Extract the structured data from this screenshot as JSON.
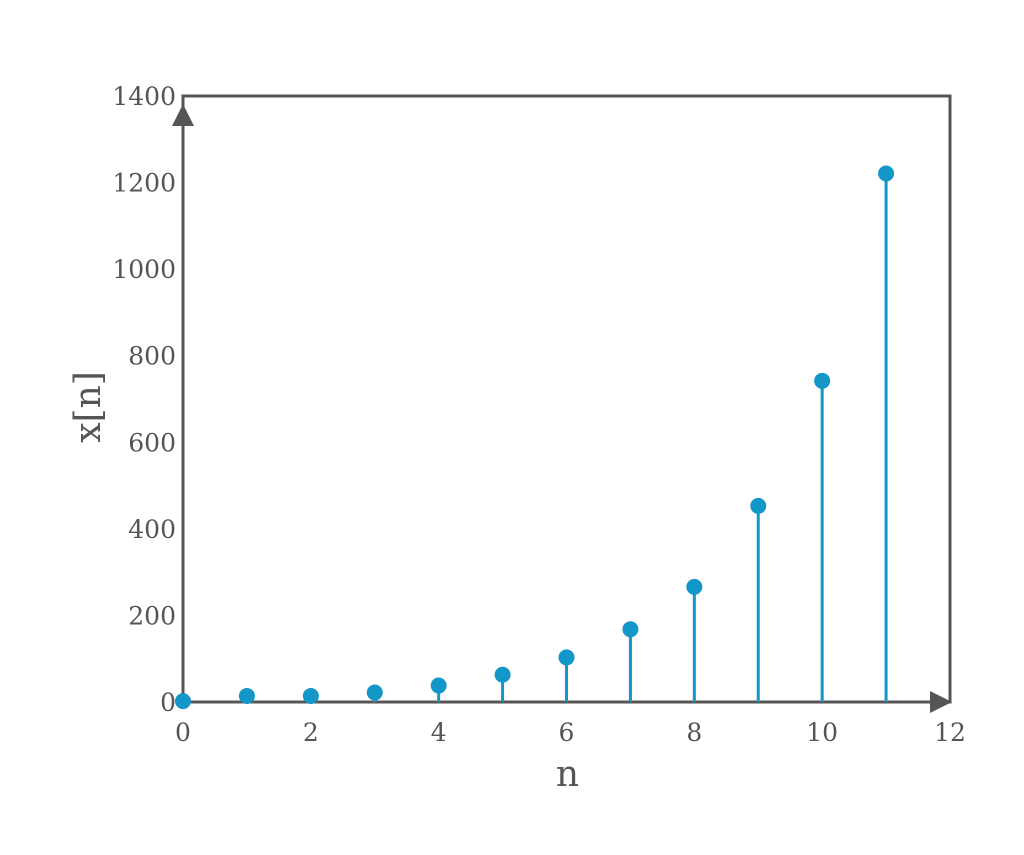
{
  "chart_data": {
    "type": "stem",
    "title": "",
    "xlabel": "n",
    "ylabel": "x[n]",
    "xlim": [
      0,
      12
    ],
    "ylim": [
      0,
      1400
    ],
    "xticks": [
      0,
      2,
      4,
      6,
      8,
      10,
      12
    ],
    "yticks": [
      0,
      200,
      400,
      600,
      800,
      1000,
      1200,
      1400
    ],
    "grid": false,
    "x": [
      0,
      1,
      2,
      3,
      4,
      5,
      6,
      7,
      8,
      9,
      10,
      11
    ],
    "values": [
      2,
      14,
      14,
      22,
      38,
      63,
      103,
      168,
      266,
      453,
      742,
      1221
    ],
    "colors": {
      "series": "#1396c8",
      "axis": "#555555"
    }
  }
}
